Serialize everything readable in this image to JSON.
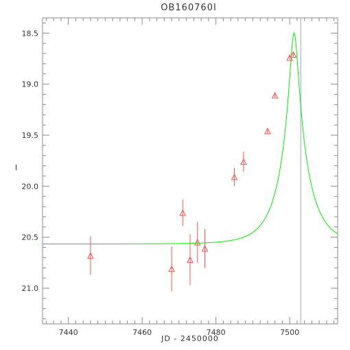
{
  "chart_data": {
    "type": "scatter",
    "title": "OB160760I",
    "xlabel": "JD - 2450000",
    "ylabel": "I",
    "xlim": [
      7433,
      7513
    ],
    "ylim": [
      21.35,
      18.35
    ],
    "y_inverted": true,
    "x_ticks": [
      7440,
      7460,
      7480,
      7500
    ],
    "x_tick_labels": [
      "7440",
      "7460",
      "7480",
      "7500"
    ],
    "y_ticks": [
      18.5,
      19.0,
      19.5,
      20.0,
      20.5,
      21.0
    ],
    "y_tick_labels": [
      "18.5",
      "19.0",
      "19.5",
      "20.0",
      "20.5",
      "21.0"
    ],
    "grid": false,
    "series": [
      {
        "kind": "points_with_errorbars",
        "marker": "triangle",
        "color": "#ff5050",
        "points": [
          {
            "x": 7446,
            "y": 20.68,
            "err": 0.19
          },
          {
            "x": 7468,
            "y": 20.81,
            "err": 0.22
          },
          {
            "x": 7471,
            "y": 20.26,
            "err": 0.13
          },
          {
            "x": 7473,
            "y": 20.72,
            "err": 0.25
          },
          {
            "x": 7475,
            "y": 20.55,
            "err": 0.2
          },
          {
            "x": 7477,
            "y": 20.61,
            "err": 0.19
          },
          {
            "x": 7485,
            "y": 19.91,
            "err": 0.09
          },
          {
            "x": 7487.5,
            "y": 19.76,
            "err": 0.1
          },
          {
            "x": 7494,
            "y": 19.46,
            "err": 0.03
          },
          {
            "x": 7496,
            "y": 19.11,
            "err": 0.02
          },
          {
            "x": 7500,
            "y": 18.74,
            "err": 0.02
          },
          {
            "x": 7501,
            "y": 18.71,
            "err": 0.02
          }
        ]
      },
      {
        "kind": "model_curve",
        "color": "#00ee00",
        "model": "paczynski",
        "t0": 7501.2,
        "tE": 7.0,
        "u0": 0.15,
        "I_base": 20.567
      }
    ],
    "vertical_line": {
      "x": 7503,
      "color": "#9a9ae0"
    }
  }
}
